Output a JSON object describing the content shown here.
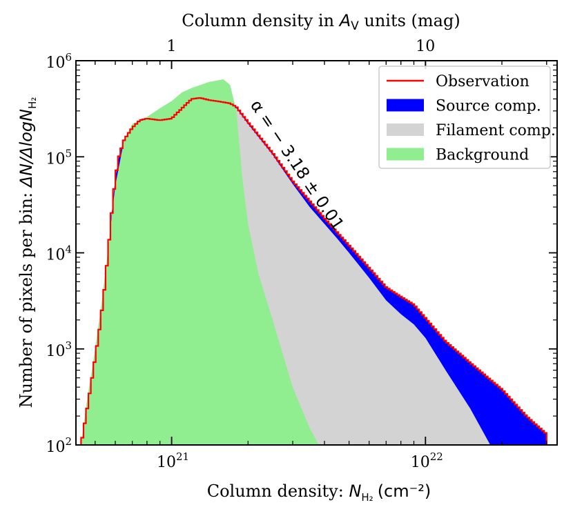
{
  "chart_data": {
    "type": "area",
    "title": "",
    "xlabel_prefix": "Column density: ",
    "xlabel_symbol": "N",
    "xlabel_sub": "H₂",
    "xlabel_unit": "(cm⁻²)",
    "ylabel_prefix": "Number of pixels per bin: ",
    "ylabel_symbol": "ΔN/ΔlogN",
    "ylabel_sub": "H₂",
    "top_label_prefix": "Column density in ",
    "top_label_symbol": "A",
    "top_label_sub": "V",
    "top_label_suffix": " units (mag)",
    "x_scale": "log",
    "y_scale": "log",
    "xlim": [
      4.2e+20,
      3.3e+22
    ],
    "ylim": [
      100,
      1000000
    ],
    "x_ticks": [
      {
        "value": 1e+21,
        "base": "10",
        "exp": "21"
      },
      {
        "value": 1e+22,
        "base": "10",
        "exp": "22"
      }
    ],
    "y_ticks": [
      {
        "value": 100,
        "base": "10",
        "exp": "2"
      },
      {
        "value": 1000,
        "base": "10",
        "exp": "3"
      },
      {
        "value": 10000,
        "base": "10",
        "exp": "4"
      },
      {
        "value": 100000,
        "base": "10",
        "exp": "5"
      },
      {
        "value": 1000000,
        "base": "10",
        "exp": "6"
      }
    ],
    "top_ticks": [
      {
        "label": "1",
        "nh2": 1e+21
      },
      {
        "label": "10",
        "nh2": 1e+22
      }
    ],
    "annotation": "α = − 3.18 ± 0.01",
    "legend_position": "top-right",
    "legend": [
      {
        "label": "Observation",
        "color": "#ff0000",
        "kind": "line"
      },
      {
        "label": "Source comp.",
        "color": "#0000ff",
        "kind": "patch"
      },
      {
        "label": "Filament comp.",
        "color": "#d3d3d3",
        "kind": "patch"
      },
      {
        "label": "Background",
        "color": "#90ee90",
        "kind": "patch"
      }
    ],
    "series": [
      {
        "name": "Observation",
        "color": "#ff0000",
        "x": [
          4.4e+20,
          4.6e+20,
          4.8e+20,
          5e+20,
          5.2e+20,
          5.4e+20,
          5.6e+20,
          5.8e+20,
          6e+20,
          6.2e+20,
          6.5e+20,
          7e+20,
          7.5e+20,
          8e+20,
          8.5e+20,
          9e+20,
          1e+21,
          1.1e+21,
          1.2e+21,
          1.3e+21,
          1.4e+21,
          1.5e+21,
          1.6e+21,
          1.7e+21,
          1.8e+21,
          2e+21,
          2.5e+21,
          3e+21,
          4e+21,
          5e+21,
          6e+21,
          7e+21,
          8e+21,
          9e+21,
          1e+22,
          1.2e+22,
          1.5e+22,
          2e+22,
          2.5e+22,
          3e+22
        ],
        "values": [
          100,
          200,
          400,
          800,
          1600,
          3500,
          9000,
          25000,
          60000,
          100000,
          150000,
          200000,
          240000,
          250000,
          245000,
          240000,
          250000,
          320000,
          400000,
          410000,
          390000,
          380000,
          370000,
          360000,
          330000,
          230000,
          110000,
          56000,
          23000,
          12000,
          7000,
          4400,
          3500,
          2900,
          2100,
          1200,
          720,
          380,
          200,
          130
        ]
      },
      {
        "name": "Source comp.",
        "color": "#0000ff",
        "x": [
          4.4e+20,
          4.6e+20,
          4.8e+20,
          5e+20,
          5.2e+20,
          5.4e+20,
          5.6e+20,
          5.8e+20,
          6e+20,
          6.2e+20,
          6.5e+20,
          7e+20,
          7.5e+20,
          8e+20,
          8.5e+20,
          9e+20,
          1e+21,
          1.1e+21,
          1.2e+21,
          1.3e+21,
          1.4e+21,
          1.5e+21,
          1.6e+21,
          1.7e+21,
          1.8e+21,
          2e+21,
          2.5e+21,
          3e+21,
          4e+21,
          5e+21,
          6e+21,
          7e+21,
          8e+21,
          9e+21,
          1e+22,
          1.2e+22,
          1.5e+22,
          2e+22,
          2.5e+22,
          3e+22
        ],
        "values": [
          100,
          200,
          400,
          800,
          1600,
          3500,
          9000,
          25000,
          60000,
          100000,
          150000,
          200000,
          240000,
          250000,
          245000,
          240000,
          250000,
          320000,
          400000,
          410000,
          390000,
          380000,
          370000,
          360000,
          330000,
          230000,
          110000,
          56000,
          23000,
          12000,
          7000,
          4400,
          3500,
          2900,
          2100,
          1200,
          720,
          380,
          200,
          130
        ]
      },
      {
        "name": "Filament comp.",
        "color": "#d3d3d3",
        "x": [
          1.4e+21,
          1.6e+21,
          1.8e+21,
          2e+21,
          2.5e+21,
          3e+21,
          3.5e+21,
          4e+21,
          4.5e+21,
          5e+21,
          6e+21,
          7e+21,
          8e+21,
          9e+21,
          1e+22,
          1.2e+22,
          1.5e+22,
          1.8e+22
        ],
        "values": [
          360000,
          350000,
          320000,
          220000,
          105000,
          52000,
          30000,
          20000,
          14000,
          10000,
          5500,
          3200,
          2300,
          1800,
          1300,
          600,
          240,
          100
        ]
      },
      {
        "name": "Background",
        "color": "#90ee90",
        "x": [
          4.4e+20,
          4.6e+20,
          4.8e+20,
          5e+20,
          5.3e+20,
          5.6e+20,
          6e+20,
          6.5e+20,
          7e+20,
          8e+20,
          9e+20,
          1e+21,
          1.1e+21,
          1.2e+21,
          1.3e+21,
          1.4e+21,
          1.5e+21,
          1.6e+21,
          1.7e+21,
          1.8e+21,
          1.9e+21,
          2e+21,
          2.2e+21,
          2.5e+21,
          3e+21,
          3.5e+21,
          3.8e+21
        ],
        "values": [
          100,
          250,
          500,
          1000,
          3000,
          10000,
          50000,
          150000,
          220000,
          260000,
          320000,
          380000,
          470000,
          520000,
          560000,
          600000,
          620000,
          640000,
          560000,
          300000,
          60000,
          20000,
          6000,
          2000,
          400,
          150,
          100
        ]
      }
    ]
  }
}
